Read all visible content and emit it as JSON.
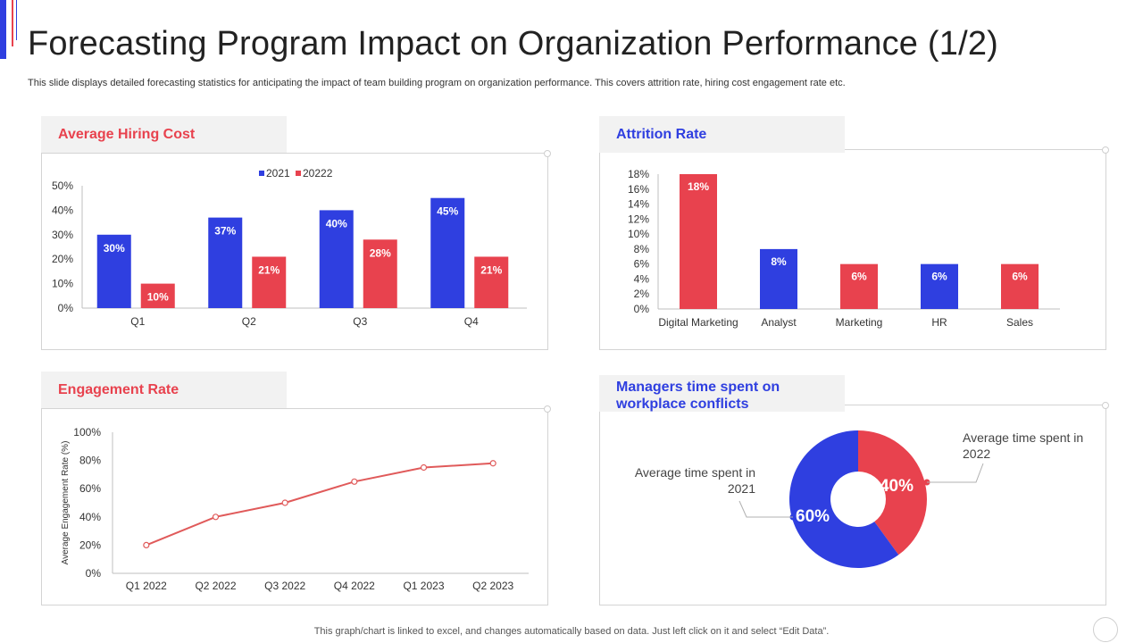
{
  "page": {
    "title": "Forecasting Program Impact on Organization Performance (1/2)",
    "subtitle": "This slide displays detailed forecasting statistics for anticipating the impact of team building program on organization performance. This covers attrition rate, hiring cost engagement rate etc.",
    "footer": "This graph/chart is linked to excel,  and changes automatically based on data. Just left click on it and select “Edit Data”."
  },
  "colors": {
    "blue": "#2f3fe0",
    "red": "#e8424e",
    "grid": "#bfbfbf",
    "line": "#e05a5a"
  },
  "chart_data": [
    {
      "id": "hiring",
      "type": "bar",
      "title": "Average Hiring Cost",
      "categories": [
        "Q1",
        "Q2",
        "Q3",
        "Q4"
      ],
      "series": [
        {
          "name": "2021",
          "values": [
            30,
            37,
            40,
            45
          ],
          "labels": [
            "30%",
            "37%",
            "40%",
            "45%"
          ]
        },
        {
          "name": "20222",
          "values": [
            10,
            21,
            28,
            21
          ],
          "labels": [
            "10%",
            "21%",
            "28%",
            "21%"
          ]
        }
      ],
      "ylim": [
        0,
        50
      ],
      "yticks": [
        "0%",
        "10%",
        "20%",
        "30%",
        "40%",
        "50%"
      ],
      "legend": "top"
    },
    {
      "id": "attrition",
      "type": "bar",
      "title": "Attrition Rate",
      "categories": [
        "Digital Marketing",
        "Analyst",
        "Marketing",
        "HR",
        "Sales"
      ],
      "values": [
        18,
        8,
        6,
        6,
        6
      ],
      "labels": [
        "18%",
        "8%",
        "6%",
        "6%",
        "6%"
      ],
      "bar_colors": [
        "red",
        "blue",
        "red",
        "blue",
        "red"
      ],
      "ylim": [
        0,
        18
      ],
      "yticks": [
        "0%",
        "2%",
        "4%",
        "6%",
        "8%",
        "10%",
        "12%",
        "14%",
        "16%",
        "18%"
      ]
    },
    {
      "id": "engagement",
      "type": "line",
      "title": "Engagement Rate",
      "x": [
        "Q1 2022",
        "Q2 2022",
        "Q3 2022",
        "Q4 2022",
        "Q1 2023",
        "Q2 2023"
      ],
      "values": [
        20,
        40,
        50,
        65,
        75,
        78
      ],
      "ylabel": "Average Engagement Rate (%)",
      "ylim": [
        0,
        100
      ],
      "yticks": [
        "0%",
        "20%",
        "40%",
        "60%",
        "80%",
        "100%"
      ]
    },
    {
      "id": "managers",
      "type": "pie",
      "title_line1": "Managers time spent on",
      "title_line2": "workplace conflicts",
      "slices": [
        {
          "name_line1": "Average time spent in",
          "name_line2": "2022",
          "value": 40,
          "label": "40%",
          "color": "red"
        },
        {
          "name_line1": "Average time spent in",
          "name_line2": "2021",
          "value": 60,
          "label": "60%",
          "color": "blue"
        }
      ]
    }
  ]
}
